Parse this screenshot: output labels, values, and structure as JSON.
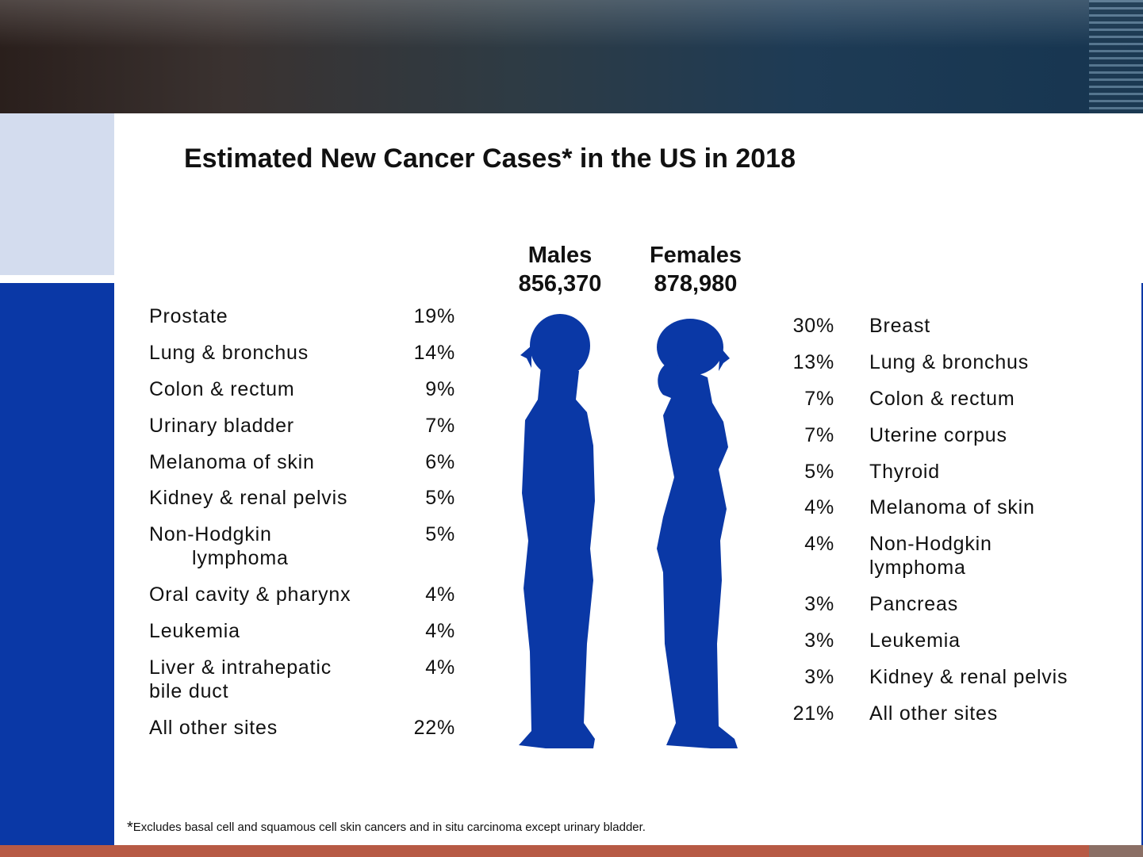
{
  "title": "Estimated New Cancer Cases* in the US in 2018",
  "colors": {
    "accent_blue": "#0a38a6",
    "light_panel": "#d3dcee",
    "bottom_bar": "#b75a45"
  },
  "males": {
    "label": "Males",
    "total": "856,370",
    "rows": [
      {
        "site": "Prostate",
        "pct": "19%"
      },
      {
        "site": "Lung & bronchus",
        "pct": "14%"
      },
      {
        "site": "Colon & rectum",
        "pct": "9%"
      },
      {
        "site": "Urinary bladder",
        "pct": "7%"
      },
      {
        "site": "Melanoma of skin",
        "pct": "6%"
      },
      {
        "site": "Kidney & renal pelvis",
        "pct": "5%"
      },
      {
        "site": "Non-Hodgkin",
        "site2": "lymphoma",
        "pct": "5%"
      },
      {
        "site": "Oral cavity & pharynx",
        "pct": "4%"
      },
      {
        "site": "Leukemia",
        "pct": "4%"
      },
      {
        "site": "Liver & intrahepatic",
        "site2": "bile duct",
        "pct": "4%"
      },
      {
        "site": "All other sites",
        "pct": "22%"
      }
    ]
  },
  "females": {
    "label": "Females",
    "total": "878,980",
    "rows": [
      {
        "pct": "30%",
        "site": "Breast"
      },
      {
        "pct": "13%",
        "site": "Lung & bronchus"
      },
      {
        "pct": "7%",
        "site": "Colon & rectum"
      },
      {
        "pct": "7%",
        "site": "Uterine corpus"
      },
      {
        "pct": "5%",
        "site": "Thyroid"
      },
      {
        "pct": "4%",
        "site": "Melanoma of skin"
      },
      {
        "pct": "4%",
        "site": "Non-Hodgkin",
        "site2": "lymphoma"
      },
      {
        "pct": "3%",
        "site": "Pancreas"
      },
      {
        "pct": "3%",
        "site": "Leukemia"
      },
      {
        "pct": "3%",
        "site": "Kidney & renal pelvis"
      },
      {
        "pct": "21%",
        "site": "All other sites"
      }
    ]
  },
  "footnote": {
    "star": "*",
    "text": "Excludes basal cell and squamous cell skin cancers and in situ carcinoma except urinary bladder."
  }
}
